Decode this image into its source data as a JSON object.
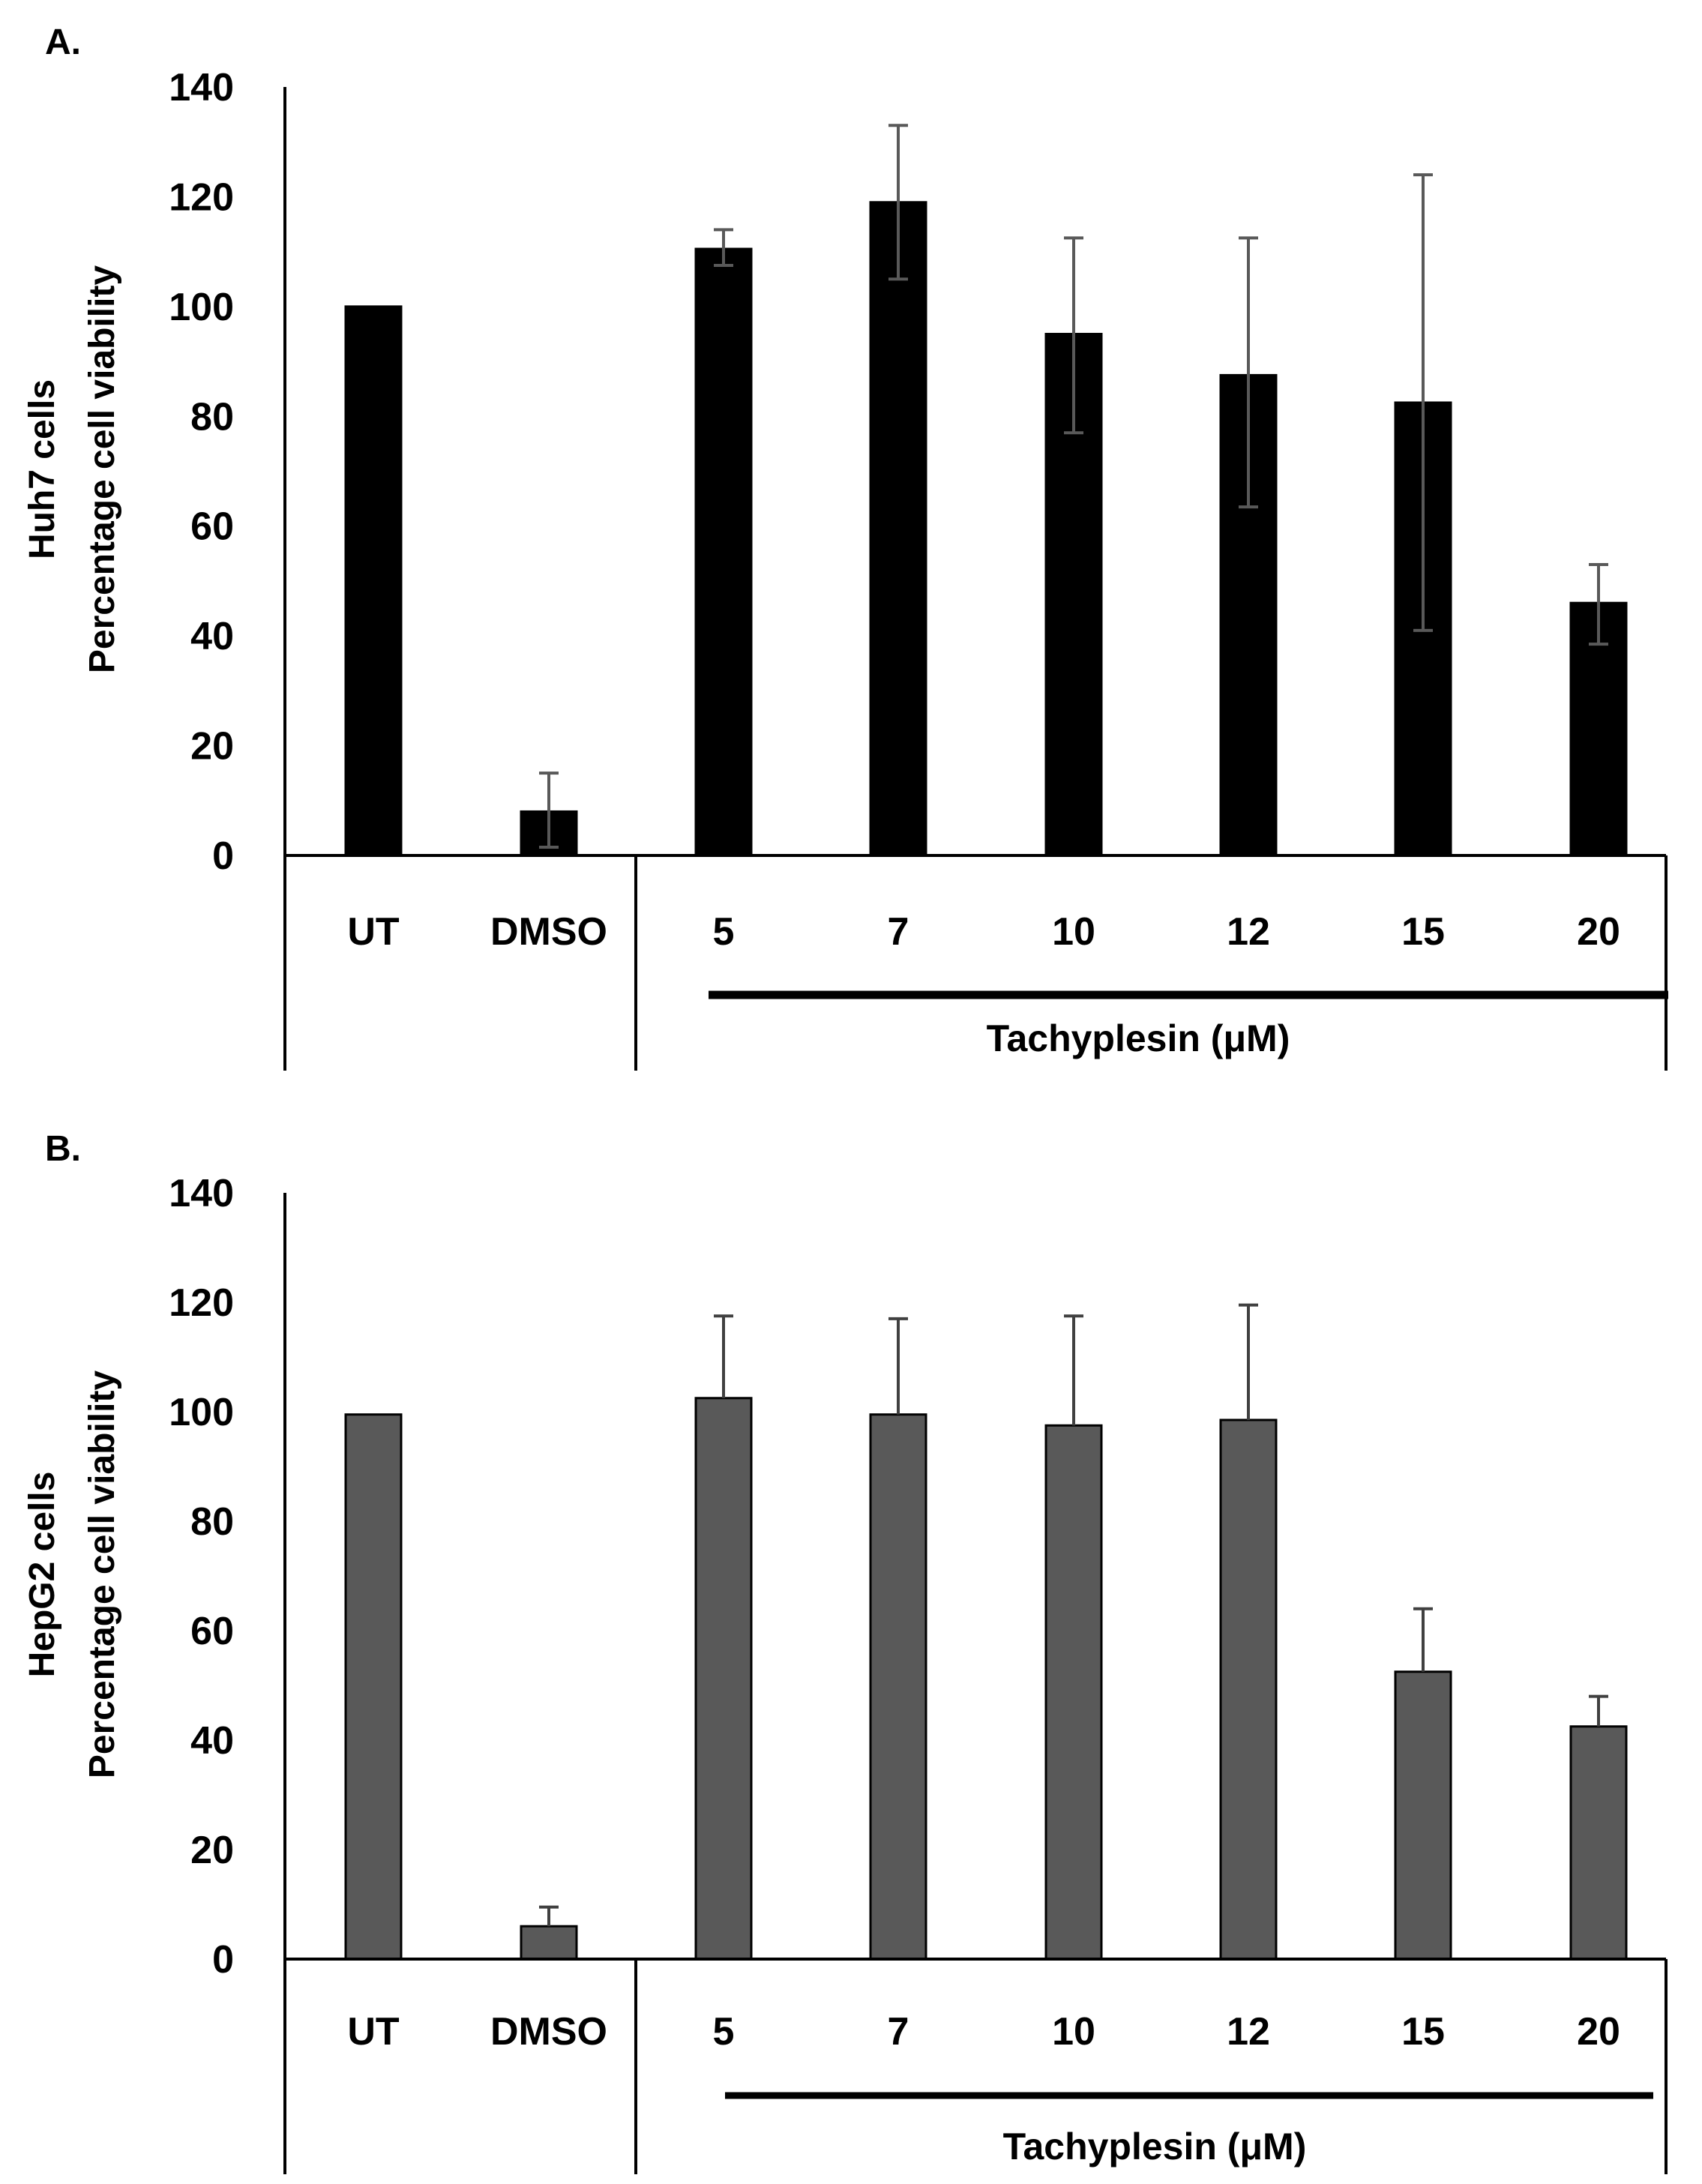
{
  "chart_data": [
    {
      "type": "bar",
      "panel_label": "A.",
      "ylabel_line1": "Huh7 cells",
      "ylabel_line2": "Percentage cell viability",
      "categories": [
        "UT",
        "DMSO",
        "5",
        "7",
        "10",
        "12",
        "15",
        "20"
      ],
      "values": [
        100,
        8,
        110.5,
        119,
        95,
        87.5,
        82.5,
        46
      ],
      "error_low": [
        100,
        1.5,
        107.5,
        105,
        77,
        63.5,
        41,
        38.5
      ],
      "error_high": [
        100,
        15,
        114,
        133,
        112.5,
        112.5,
        124,
        53
      ],
      "ylim": [
        0,
        140
      ],
      "yticks": [
        "0",
        "20",
        "40",
        "60",
        "80",
        "100",
        "120",
        "140"
      ],
      "group_label": "Tachyplesin  (μM)",
      "bar_color": "#000000",
      "grid": false
    },
    {
      "type": "bar",
      "panel_label": "B.",
      "ylabel_line1": "HepG2 cells",
      "ylabel_line2": "Percentage cell viability",
      "categories": [
        "UT",
        "DMSO",
        "5",
        "7",
        "10",
        "12",
        "15",
        "20"
      ],
      "values": [
        99.5,
        6,
        102.5,
        99.5,
        97.5,
        98.5,
        52.5,
        42.5
      ],
      "error_low": [
        99.5,
        6,
        102.5,
        99.5,
        97.5,
        98.5,
        52.5,
        42.5
      ],
      "error_high": [
        99.5,
        9.5,
        117.5,
        117,
        117.5,
        119.5,
        64,
        48
      ],
      "ylim": [
        0,
        140
      ],
      "yticks": [
        "0",
        "20",
        "40",
        "60",
        "80",
        "100",
        "120",
        "140"
      ],
      "group_label": "Tachyplesin  (μM)",
      "bar_color": "#595959",
      "grid": false
    }
  ]
}
